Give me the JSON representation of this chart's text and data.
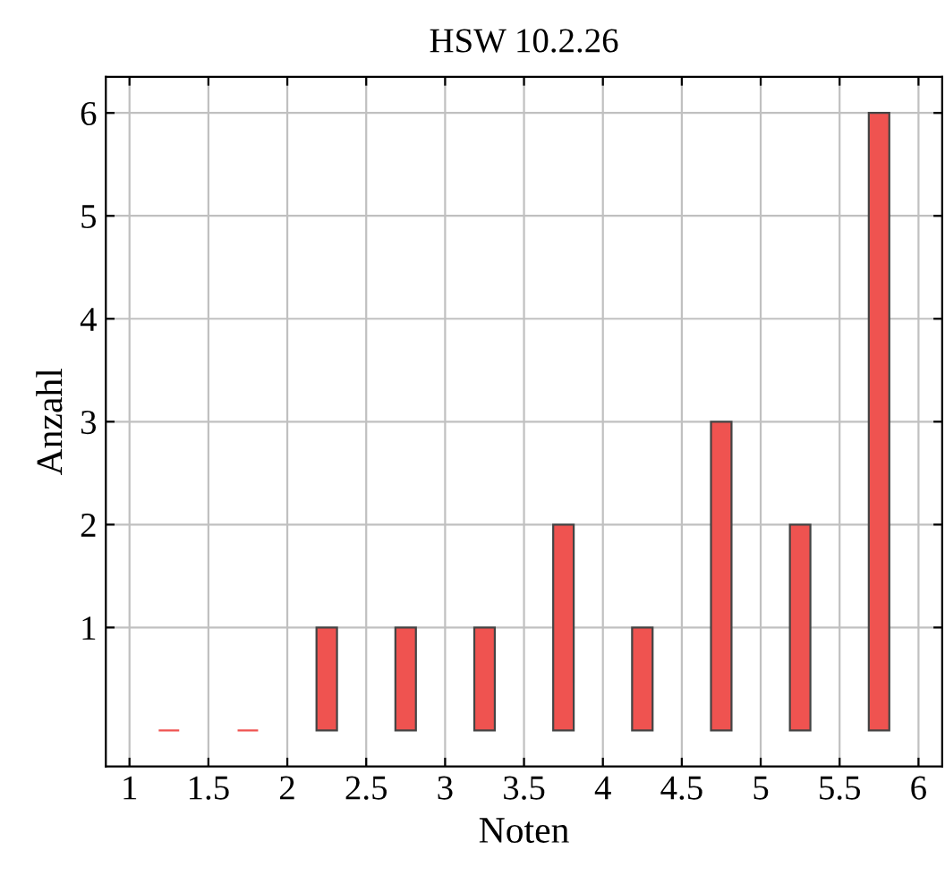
{
  "chart_data": {
    "type": "bar",
    "title": "HSW 10.2.26",
    "xlabel": "Noten",
    "ylabel": "Anzahl",
    "x": [
      1.25,
      1.75,
      2.25,
      2.75,
      3.25,
      3.75,
      4.25,
      4.75,
      5.25,
      5.75
    ],
    "values": [
      0,
      0,
      1,
      1,
      1,
      2,
      1,
      3,
      2,
      6
    ],
    "color": "#ef5350",
    "xlim": [
      0.85,
      6.15
    ],
    "xticks": [
      1,
      1.5,
      2,
      2.5,
      3,
      3.5,
      4,
      4.5,
      5,
      5.5,
      6
    ],
    "ylim": [
      -0.35,
      6.35
    ],
    "yticks": [
      1,
      2,
      3,
      4,
      5,
      6
    ],
    "grid": true
  }
}
